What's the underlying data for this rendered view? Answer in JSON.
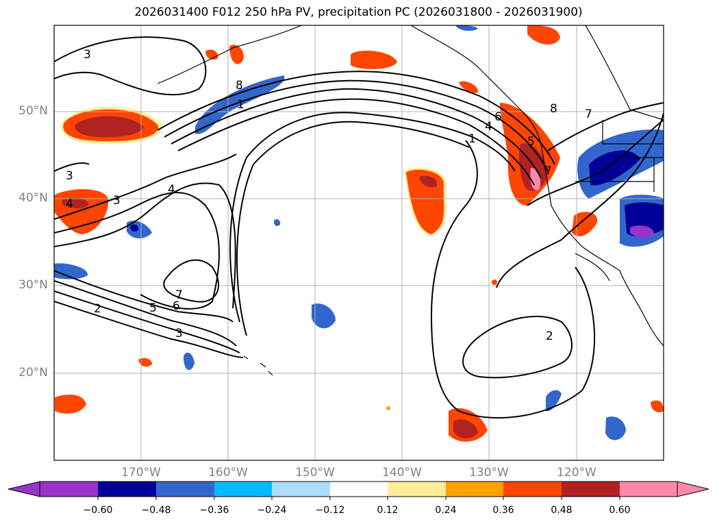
{
  "title": "2026031400 F012 250 hPa PV, precipitation PC (2026031800 - 2026031900)",
  "map": {
    "lat_labels": [
      "50°N",
      "40°N",
      "30°N",
      "20°N"
    ],
    "lon_labels": [
      "170°W",
      "160°W",
      "150°W",
      "140°W",
      "130°W",
      "120°W"
    ],
    "contour_labels": [
      "3",
      "8",
      "1",
      "3",
      "4",
      "3",
      "4",
      "7",
      "5",
      "6",
      "3",
      "2",
      "1",
      "4",
      "6",
      "5",
      "8",
      "7",
      "2",
      "7"
    ],
    "colors": {
      "purple": "#9933cc",
      "navy": "#000099",
      "blue": "#3366cc",
      "cyan": "#00bbff",
      "lightblue": "#aaddff",
      "yellow": "#ffee99",
      "orange": "#ffa000",
      "redorange": "#ff4500",
      "darkred": "#b22222",
      "pink": "#ff88aa"
    }
  },
  "colorbar": {
    "ticks": [
      "−0.60",
      "−0.48",
      "−0.36",
      "−0.24",
      "−0.12",
      "0.12",
      "0.24",
      "0.36",
      "0.48",
      "0.60"
    ],
    "bins": [
      "#9933cc",
      "#000099",
      "#3366cc",
      "#00bbff",
      "#aaddff",
      "#ffffff",
      "#ffee99",
      "#ffa000",
      "#ff4500",
      "#b22222",
      "#ff88aa"
    ]
  }
}
